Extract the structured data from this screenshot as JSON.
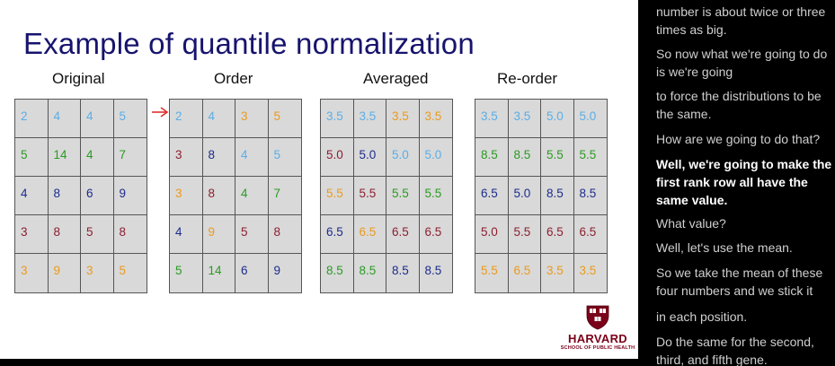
{
  "slide": {
    "title": "Example of quantile normalization",
    "tables": [
      {
        "label": "Original",
        "rows": [
          [
            {
              "v": "2",
              "c": "light_blue"
            },
            {
              "v": "4",
              "c": "light_blue"
            },
            {
              "v": "4",
              "c": "light_blue"
            },
            {
              "v": "5",
              "c": "light_blue"
            }
          ],
          [
            {
              "v": "5",
              "c": "green"
            },
            {
              "v": "14",
              "c": "green"
            },
            {
              "v": "4",
              "c": "green"
            },
            {
              "v": "7",
              "c": "green"
            }
          ],
          [
            {
              "v": "4",
              "c": "navy"
            },
            {
              "v": "8",
              "c": "navy"
            },
            {
              "v": "6",
              "c": "navy"
            },
            {
              "v": "9",
              "c": "navy"
            }
          ],
          [
            {
              "v": "3",
              "c": "maroon"
            },
            {
              "v": "8",
              "c": "maroon"
            },
            {
              "v": "5",
              "c": "maroon"
            },
            {
              "v": "8",
              "c": "maroon"
            }
          ],
          [
            {
              "v": "3",
              "c": "orange"
            },
            {
              "v": "9",
              "c": "orange"
            },
            {
              "v": "3",
              "c": "orange"
            },
            {
              "v": "5",
              "c": "orange"
            }
          ]
        ]
      },
      {
        "label": "Order",
        "rows": [
          [
            {
              "v": "2",
              "c": "light_blue"
            },
            {
              "v": "4",
              "c": "light_blue"
            },
            {
              "v": "3",
              "c": "orange"
            },
            {
              "v": "5",
              "c": "orange"
            }
          ],
          [
            {
              "v": "3",
              "c": "maroon"
            },
            {
              "v": "8",
              "c": "navy"
            },
            {
              "v": "4",
              "c": "light_blue"
            },
            {
              "v": "5",
              "c": "light_blue"
            }
          ],
          [
            {
              "v": "3",
              "c": "orange"
            },
            {
              "v": "8",
              "c": "maroon"
            },
            {
              "v": "4",
              "c": "green"
            },
            {
              "v": "7",
              "c": "green"
            }
          ],
          [
            {
              "v": "4",
              "c": "navy"
            },
            {
              "v": "9",
              "c": "orange"
            },
            {
              "v": "5",
              "c": "maroon"
            },
            {
              "v": "8",
              "c": "maroon"
            }
          ],
          [
            {
              "v": "5",
              "c": "green"
            },
            {
              "v": "14",
              "c": "green"
            },
            {
              "v": "6",
              "c": "navy"
            },
            {
              "v": "9",
              "c": "navy"
            }
          ]
        ]
      },
      {
        "label": "Averaged",
        "rows": [
          [
            {
              "v": "3.5",
              "c": "light_blue"
            },
            {
              "v": "3.5",
              "c": "light_blue"
            },
            {
              "v": "3.5",
              "c": "orange"
            },
            {
              "v": "3.5",
              "c": "orange"
            }
          ],
          [
            {
              "v": "5.0",
              "c": "maroon"
            },
            {
              "v": "5.0",
              "c": "navy"
            },
            {
              "v": "5.0",
              "c": "light_blue"
            },
            {
              "v": "5.0",
              "c": "light_blue"
            }
          ],
          [
            {
              "v": "5.5",
              "c": "orange"
            },
            {
              "v": "5.5",
              "c": "maroon"
            },
            {
              "v": "5.5",
              "c": "green"
            },
            {
              "v": "5.5",
              "c": "green"
            }
          ],
          [
            {
              "v": "6.5",
              "c": "navy"
            },
            {
              "v": "6.5",
              "c": "orange"
            },
            {
              "v": "6.5",
              "c": "maroon"
            },
            {
              "v": "6.5",
              "c": "maroon"
            }
          ],
          [
            {
              "v": "8.5",
              "c": "green"
            },
            {
              "v": "8.5",
              "c": "green"
            },
            {
              "v": "8.5",
              "c": "navy"
            },
            {
              "v": "8.5",
              "c": "navy"
            }
          ]
        ]
      },
      {
        "label": "Re-order",
        "rows": [
          [
            {
              "v": "3.5",
              "c": "light_blue"
            },
            {
              "v": "3.5",
              "c": "light_blue"
            },
            {
              "v": "5.0",
              "c": "light_blue"
            },
            {
              "v": "5.0",
              "c": "light_blue"
            }
          ],
          [
            {
              "v": "8.5",
              "c": "green"
            },
            {
              "v": "8.5",
              "c": "green"
            },
            {
              "v": "5.5",
              "c": "green"
            },
            {
              "v": "5.5",
              "c": "green"
            }
          ],
          [
            {
              "v": "6.5",
              "c": "navy"
            },
            {
              "v": "5.0",
              "c": "navy"
            },
            {
              "v": "8.5",
              "c": "navy"
            },
            {
              "v": "8.5",
              "c": "navy"
            }
          ],
          [
            {
              "v": "5.0",
              "c": "maroon"
            },
            {
              "v": "5.5",
              "c": "maroon"
            },
            {
              "v": "6.5",
              "c": "maroon"
            },
            {
              "v": "6.5",
              "c": "maroon"
            }
          ],
          [
            {
              "v": "5.5",
              "c": "orange"
            },
            {
              "v": "6.5",
              "c": "orange"
            },
            {
              "v": "3.5",
              "c": "orange"
            },
            {
              "v": "3.5",
              "c": "orange"
            }
          ]
        ]
      }
    ],
    "logo": {
      "name": "HARVARD",
      "subtitle": "SCHOOL OF PUBLIC HEALTH"
    }
  },
  "colors": {
    "light_blue": "#5aaee6",
    "green": "#2b9a22",
    "navy": "#1d2b8c",
    "maroon": "#8c1f30",
    "orange": "#eb9a1c",
    "title": "#17146e",
    "arrow": "#e03030",
    "cell_bg": "#d9d9d9"
  },
  "transcript": {
    "lines": [
      {
        "text": "number is about twice or three times as big.",
        "active": false
      },
      {
        "text": "So now what we're going to do is we're going",
        "active": false
      },
      {
        "text": "to force the distributions to be the same.",
        "active": false
      },
      {
        "text": "How are we going to do that?",
        "active": false
      },
      {
        "text": "Well, we're going to make the first rank row all have the same value.",
        "active": true
      },
      {
        "text": "What value?",
        "active": false
      },
      {
        "text": "Well, let's use the mean.",
        "active": false
      },
      {
        "text": "So we take the mean of these four numbers and we stick it",
        "active": false
      },
      {
        "text": "in each position.",
        "active": false
      },
      {
        "text": "Do the same for the second, third, and fifth gene.",
        "active": false
      }
    ]
  }
}
